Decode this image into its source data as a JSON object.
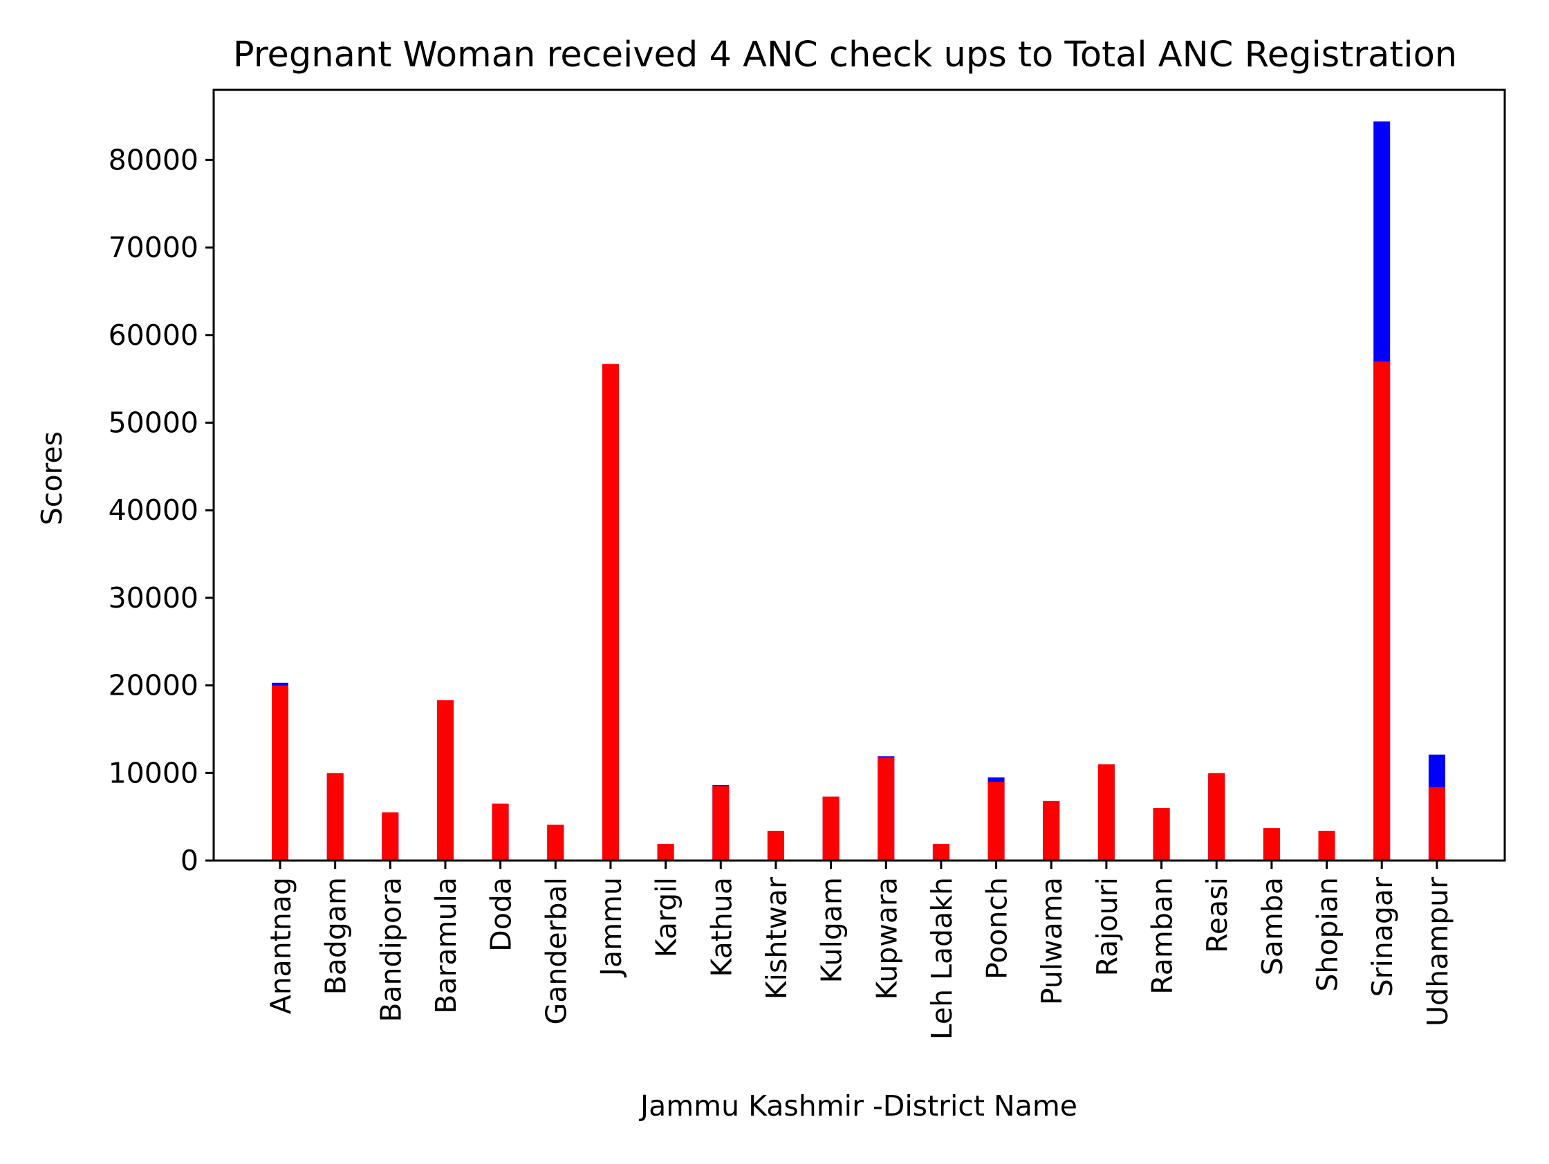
{
  "chart_data": {
    "type": "bar",
    "stacked": false,
    "title": "Pregnant Woman received 4 ANC check ups to Total ANC Registration",
    "xlabel": "Jammu Kashmir -District Name",
    "ylabel": "Scores",
    "ylim": [
      0,
      88000
    ],
    "yticks": [
      0,
      10000,
      20000,
      30000,
      40000,
      50000,
      60000,
      70000,
      80000
    ],
    "grid": false,
    "legend": "none",
    "categories": [
      "Anantnag",
      "Badgam",
      "Bandipora",
      "Baramula",
      "Doda",
      "Ganderbal",
      "Jammu",
      "Kargil",
      "Kathua",
      "Kishtwar",
      "Kulgam",
      "Kupwara",
      "Leh Ladakh",
      "Poonch",
      "Pulwama",
      "Rajouri",
      "Ramban",
      "Reasi",
      "Samba",
      "Shopian",
      "Srinagar",
      "Udhampur"
    ],
    "series": [
      {
        "color": "#0000ff",
        "values": [
          20300,
          9800,
          5300,
          17700,
          6400,
          4000,
          56000,
          1800,
          8600,
          3300,
          7200,
          11900,
          1800,
          9500,
          6700,
          10900,
          5800,
          9800,
          3600,
          3300,
          84400,
          12100
        ]
      },
      {
        "color": "#ff0000",
        "values": [
          20000,
          10000,
          5500,
          18300,
          6500,
          4100,
          56700,
          1900,
          8500,
          3400,
          7300,
          11800,
          1900,
          9000,
          6800,
          11000,
          6000,
          10000,
          3700,
          3400,
          57000,
          8400
        ]
      }
    ]
  }
}
